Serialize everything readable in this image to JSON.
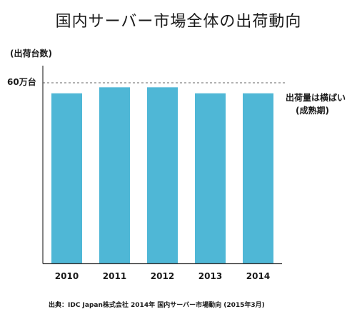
{
  "chart_data": {
    "type": "bar",
    "title": "国内サーバー市場全体の出荷動向",
    "ylabel": "(出荷台数)",
    "reference_line": {
      "value": 60,
      "label": "60万台",
      "style": "dashed"
    },
    "categories": [
      "2010",
      "2011",
      "2012",
      "2013",
      "2014"
    ],
    "values": [
      56.5,
      58.5,
      58.5,
      56.5,
      56.5
    ],
    "ylim": [
      0,
      60
    ],
    "annotation": {
      "line1": "出荷量は横ばい",
      "line2": "(成熟期)"
    },
    "source": "出典：IDC Japan株式会社 2014年 国内サーバー市場動向 (2015年3月)",
    "grid": false,
    "colors": {
      "bar": "#4fb7d6",
      "axis": "#333333",
      "reference": "#666666"
    }
  }
}
